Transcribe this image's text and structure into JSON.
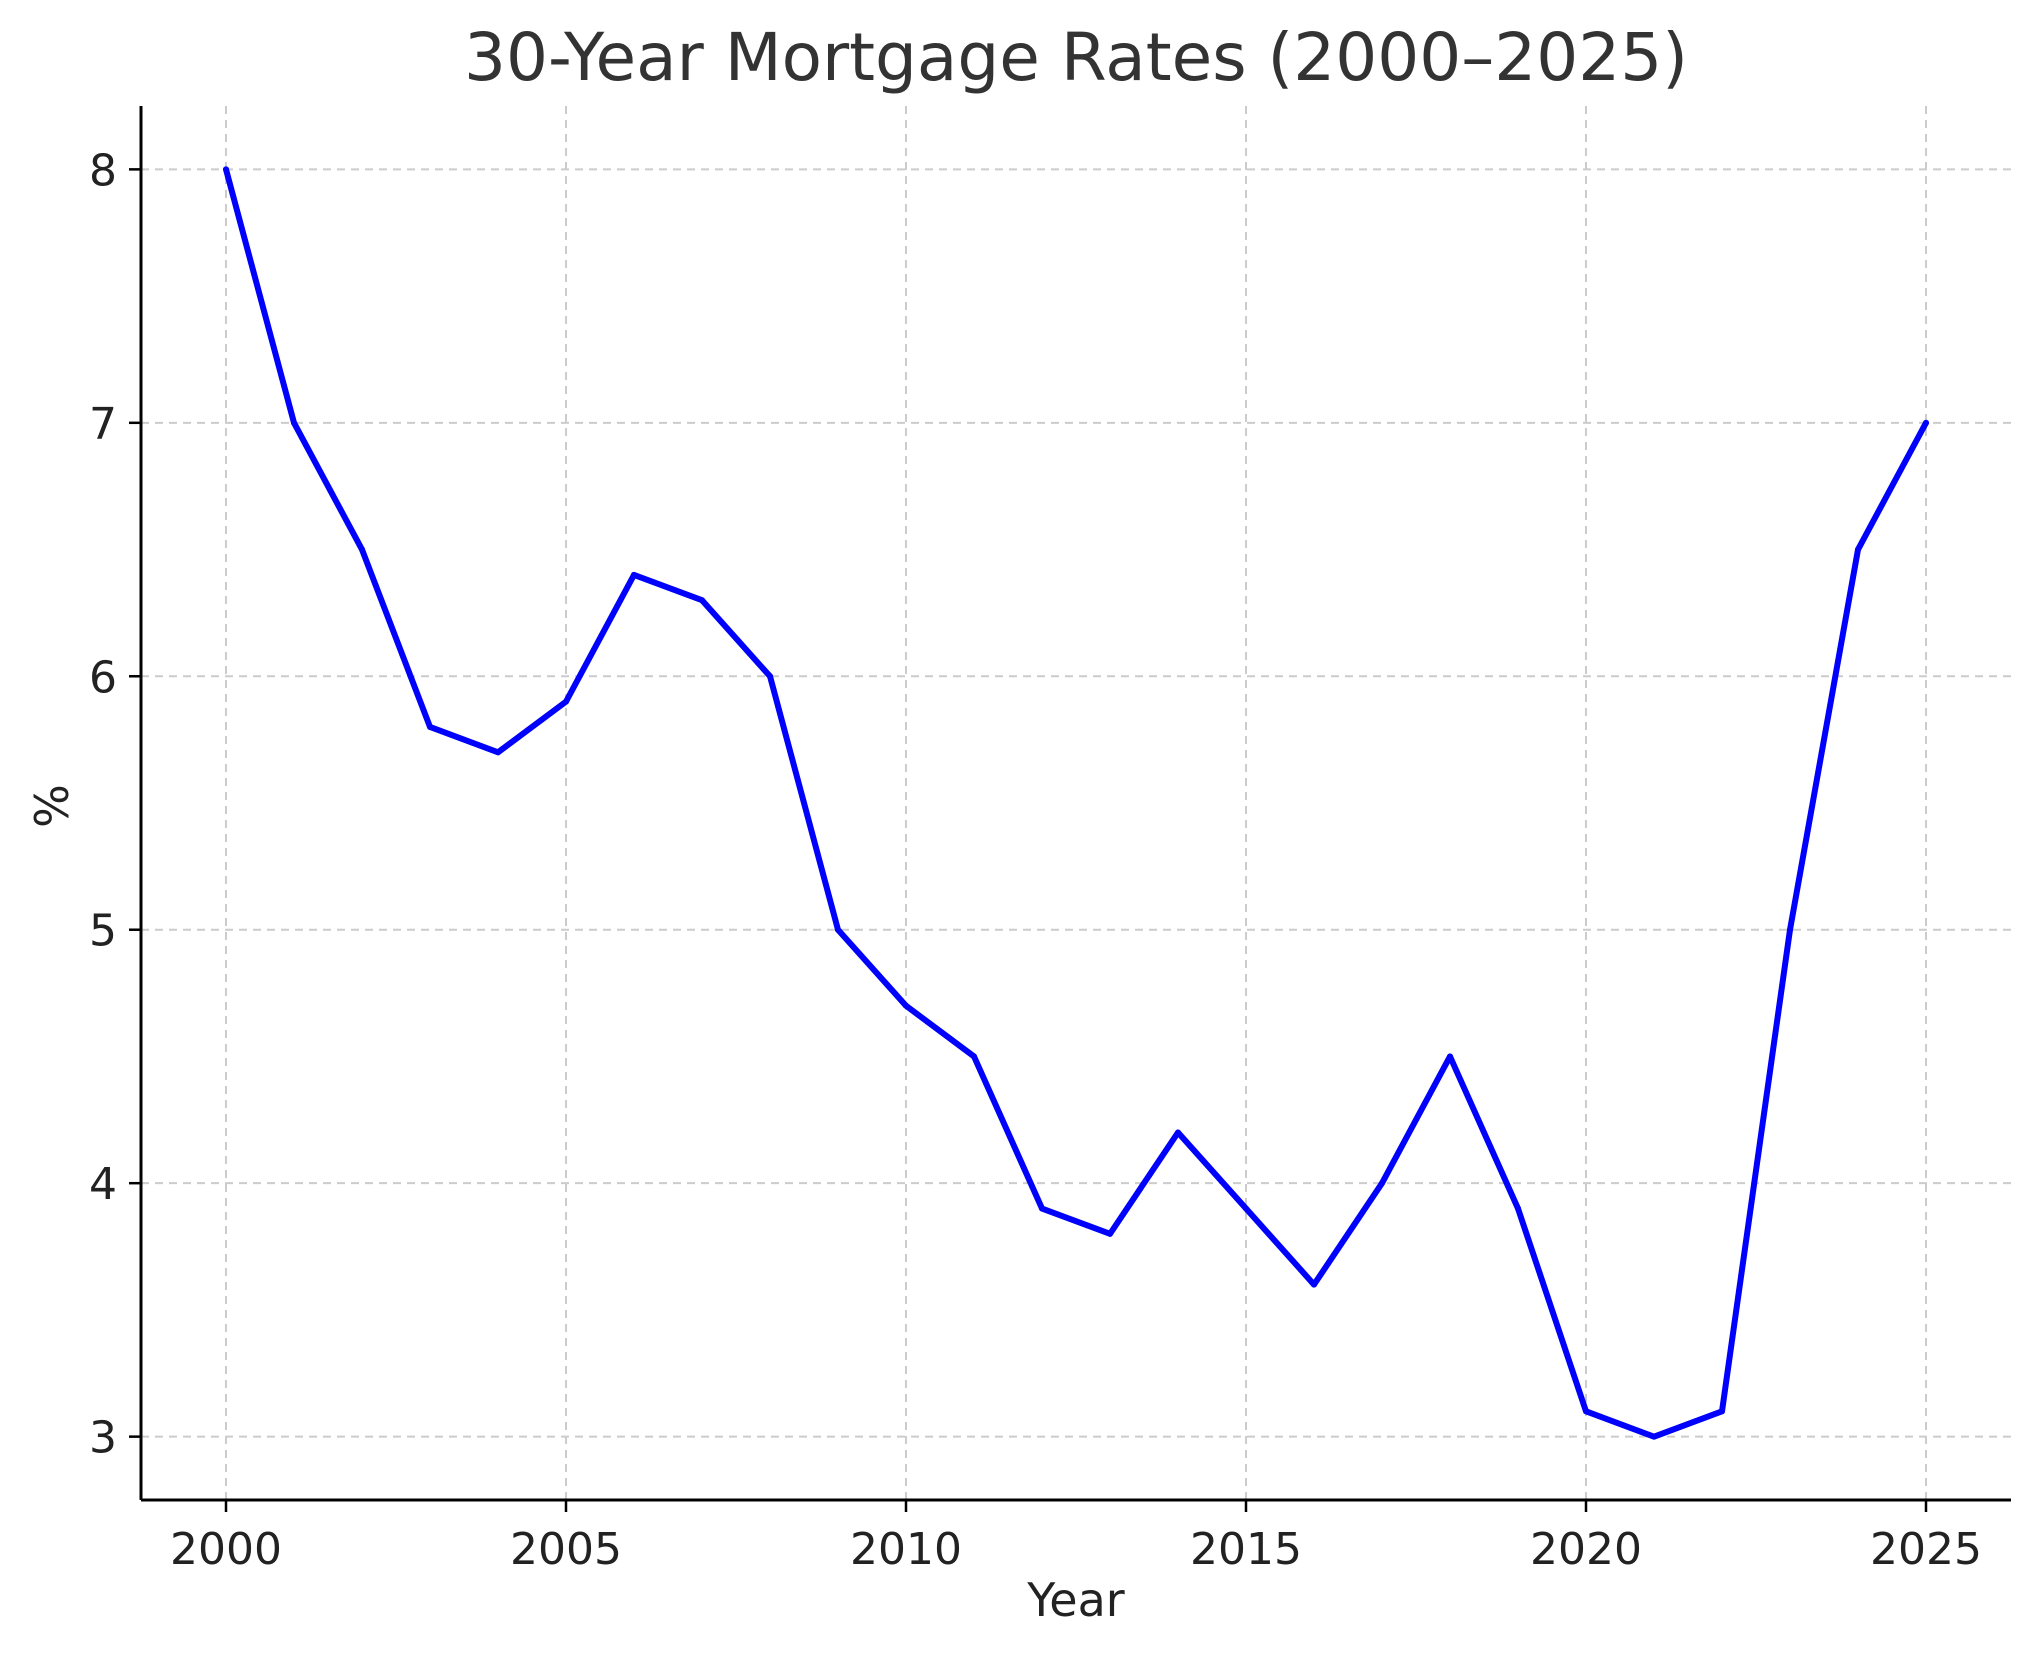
{
  "chart_data": {
    "type": "line",
    "title": "30-Year Mortgage Rates (2000–2025)",
    "xlabel": "Year",
    "ylabel": "%",
    "x": [
      2000,
      2001,
      2002,
      2003,
      2004,
      2005,
      2006,
      2007,
      2008,
      2009,
      2010,
      2011,
      2012,
      2013,
      2014,
      2015,
      2016,
      2017,
      2018,
      2019,
      2020,
      2021,
      2022,
      2023,
      2024,
      2025
    ],
    "series": [
      {
        "values": [
          8.0,
          7.0,
          6.5,
          5.8,
          5.7,
          5.9,
          6.4,
          6.3,
          6.0,
          5.0,
          4.7,
          4.5,
          3.9,
          3.8,
          4.2,
          3.9,
          3.6,
          4.0,
          4.5,
          3.9,
          3.1,
          3.0,
          3.1,
          5.0,
          6.5,
          7.0
        ],
        "color": "#0000ff"
      }
    ],
    "xticks": [
      "2000",
      "2005",
      "2010",
      "2015",
      "2020",
      "2025"
    ],
    "yticks": [
      "3",
      "4",
      "5",
      "6",
      "7",
      "8"
    ],
    "xlim": [
      1998.75,
      2026.25
    ],
    "ylim": [
      2.75,
      8.25
    ],
    "grid": true,
    "legend": "none"
  }
}
